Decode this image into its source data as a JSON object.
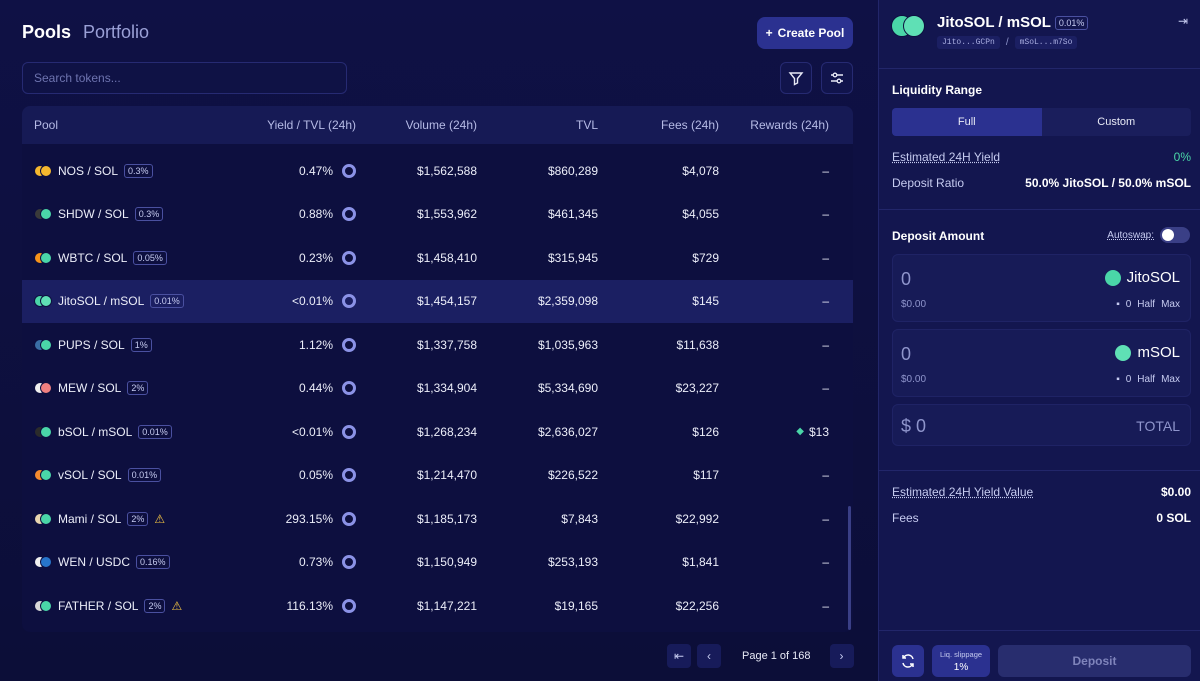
{
  "nav": {
    "tab_pools": "Pools",
    "tab_portfolio": "Portfolio"
  },
  "toolbar": {
    "create_pool_label": "Create Pool",
    "search_placeholder": "Search tokens..."
  },
  "table": {
    "headers": [
      "Pool",
      "Yield / TVL (24h)",
      "Volume (24h)",
      "TVL",
      "Fees (24h)",
      "Rewards (24h)"
    ],
    "rows": [
      {
        "pool": "NOS / SOL",
        "fee": "0.3%",
        "yield": "0.47%",
        "volume": "$1,562,588",
        "tvl": "$860,289",
        "fees": "$4,078",
        "rewards": "–",
        "c1": "#f5b82e",
        "c2": "#f5b82e"
      },
      {
        "pool": "SHDW / SOL",
        "fee": "0.3%",
        "yield": "0.88%",
        "volume": "$1,553,962",
        "tvl": "$461,345",
        "fees": "$4,055",
        "rewards": "–",
        "c1": "#3a3a3a",
        "c2": "#4ad6a8"
      },
      {
        "pool": "WBTC / SOL",
        "fee": "0.05%",
        "yield": "0.23%",
        "volume": "$1,458,410",
        "tvl": "$315,945",
        "fees": "$729",
        "rewards": "–",
        "c1": "#f7931a",
        "c2": "#4ad6a8"
      },
      {
        "pool": "JitoSOL / mSOL",
        "fee": "0.01%",
        "yield": "<0.01%",
        "volume": "$1,454,157",
        "tvl": "$2,359,098",
        "fees": "$145",
        "rewards": "–",
        "c1": "#4ad6a8",
        "c2": "#5fe0b5",
        "selected": true
      },
      {
        "pool": "PUPS / SOL",
        "fee": "1%",
        "yield": "1.12%",
        "volume": "$1,337,758",
        "tvl": "$1,035,963",
        "fees": "$11,638",
        "rewards": "–",
        "c1": "#3a6ea5",
        "c2": "#4ad6a8"
      },
      {
        "pool": "MEW / SOL",
        "fee": "2%",
        "yield": "0.44%",
        "volume": "$1,334,904",
        "tvl": "$5,334,690",
        "fees": "$23,227",
        "rewards": "–",
        "c1": "#f0f0f0",
        "c2": "#f08080"
      },
      {
        "pool": "bSOL / mSOL",
        "fee": "0.01%",
        "yield": "<0.01%",
        "volume": "$1,268,234",
        "tvl": "$2,636,027",
        "fees": "$126",
        "rewards": "$13",
        "c1": "#2b2b2b",
        "c2": "#4ad6a8"
      },
      {
        "pool": "vSOL / SOL",
        "fee": "0.01%",
        "yield": "0.05%",
        "volume": "$1,214,470",
        "tvl": "$226,522",
        "fees": "$117",
        "rewards": "–",
        "c1": "#f58a2e",
        "c2": "#4ad6a8"
      },
      {
        "pool": "Mami / SOL",
        "fee": "2%",
        "yield": "293.15%",
        "volume": "$1,185,173",
        "tvl": "$7,843",
        "fees": "$22,992",
        "rewards": "–",
        "c1": "#e8d6b0",
        "c2": "#4ad6a8",
        "warning": true
      },
      {
        "pool": "WEN / USDC",
        "fee": "0.16%",
        "yield": "0.73%",
        "volume": "$1,150,949",
        "tvl": "$253,193",
        "fees": "$1,841",
        "rewards": "–",
        "c1": "#f0f0f0",
        "c2": "#2775ca"
      },
      {
        "pool": "FATHER / SOL",
        "fee": "2%",
        "yield": "116.13%",
        "volume": "$1,147,221",
        "tvl": "$19,165",
        "fees": "$22,256",
        "rewards": "–",
        "c1": "#d8d8d8",
        "c2": "#4ad6a8",
        "warning": true
      }
    ]
  },
  "pagination": {
    "page_text": "Page 1 of 168"
  },
  "panel": {
    "title": "JitoSOL / mSOL",
    "fee_badge": "0.01%",
    "addr1": "J1to...GCPn",
    "addr2": "mSoL...m7So",
    "slash": "/",
    "liquidity_range_label": "Liquidity Range",
    "range_full": "Full",
    "range_custom": "Custom",
    "est_yield_label": "Estimated 24H Yield",
    "est_yield_value": "0%",
    "deposit_ratio_label": "Deposit Ratio",
    "deposit_ratio_value": "50.0% JitoSOL / 50.0% mSOL",
    "deposit_amount_label": "Deposit Amount",
    "autoswap_label": "Autoswap:",
    "token1": {
      "amount": "0",
      "usd": "$0.00",
      "name": "JitoSOL",
      "balance": "0",
      "half": "Half",
      "max": "Max"
    },
    "token2": {
      "amount": "0",
      "usd": "$0.00",
      "name": "mSOL",
      "balance": "0",
      "half": "Half",
      "max": "Max"
    },
    "total_amount": "$ 0",
    "total_label": "TOTAL",
    "yield_value_label": "Estimated 24H Yield Value",
    "yield_value": "$0.00",
    "fees_label": "Fees",
    "fees_value": "0 SOL",
    "slippage_label": "Liq. slippage",
    "slippage_value": "1%",
    "deposit_label": "Deposit"
  },
  "colors": {
    "accent": "#2b3190",
    "green": "#4ad6a8",
    "warning": "#f5c542"
  }
}
